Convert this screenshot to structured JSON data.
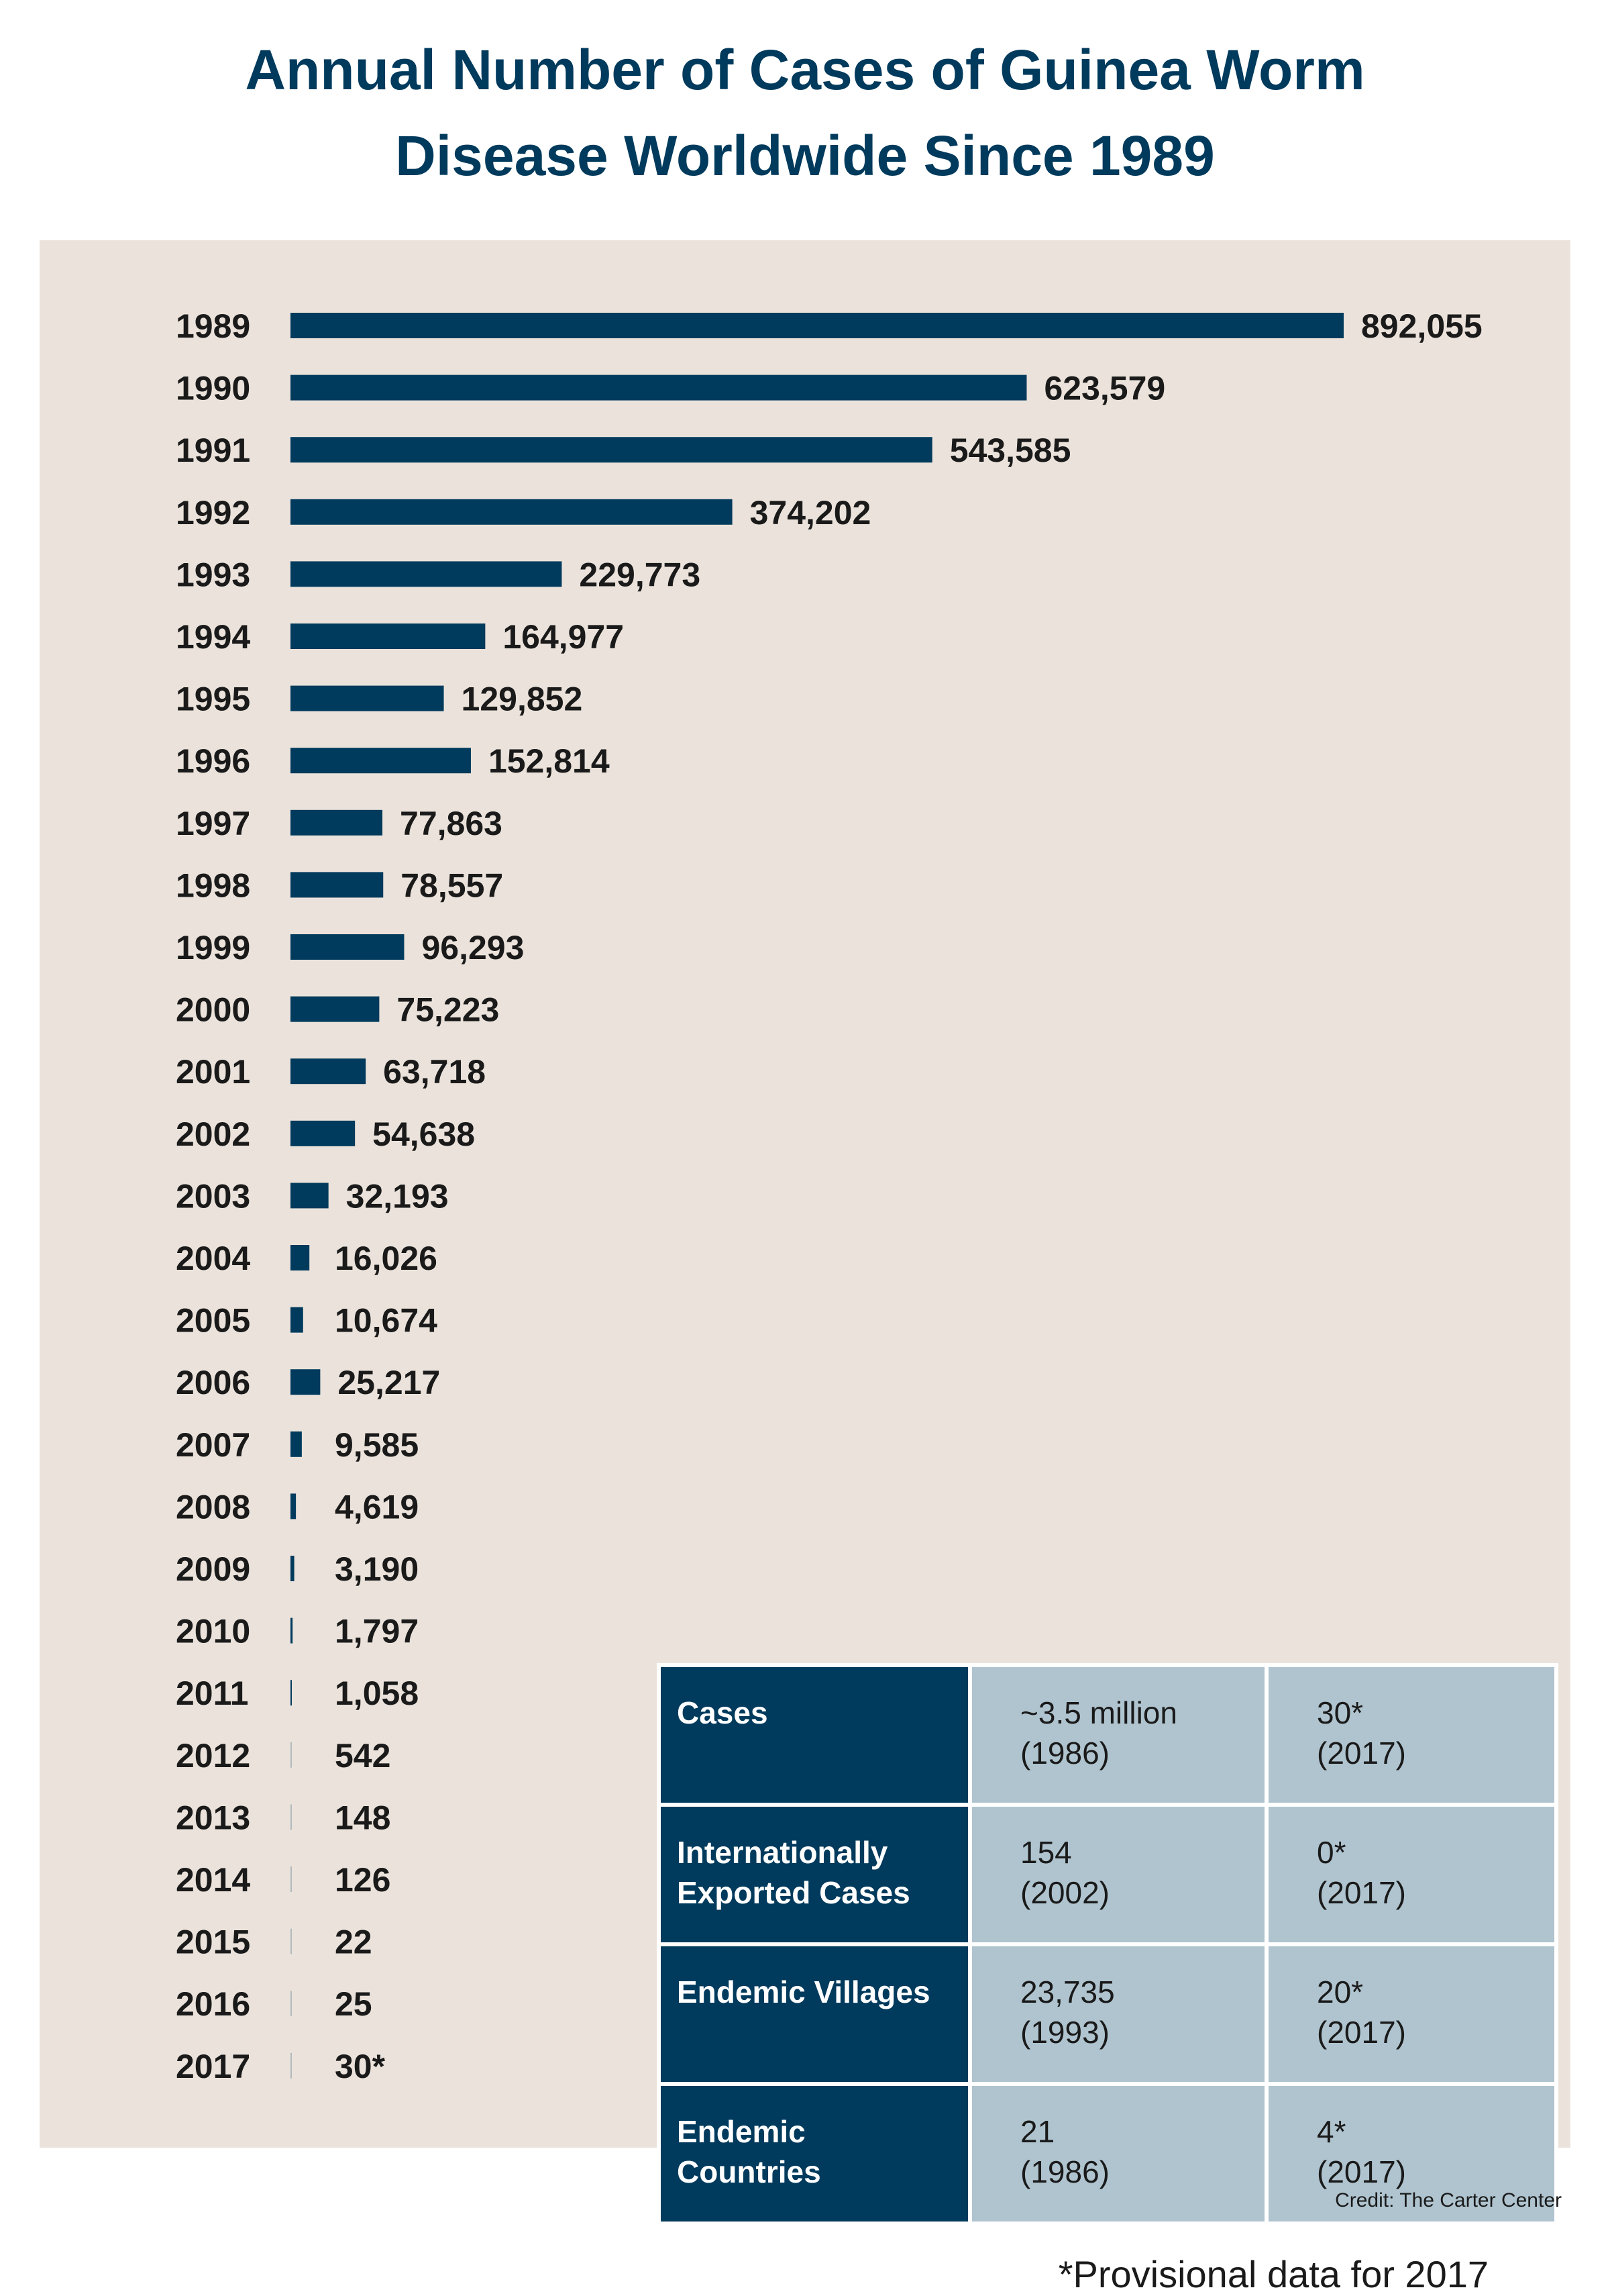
{
  "title": {
    "line1": "Annual Number of Cases of Guinea Worm",
    "line2": "Disease Worldwide Since 1989"
  },
  "colors": {
    "bar": "#003a5c",
    "panel_background": "#ebe3db",
    "table_header": "#003a5c",
    "table_cell": "#afc4cf",
    "title": "#003a5c"
  },
  "chart_data": {
    "type": "bar",
    "orientation": "horizontal",
    "title": "Annual Number of Cases of Guinea Worm Disease Worldwide Since 1989",
    "xlabel": "",
    "ylabel": "",
    "categories": [
      "1989",
      "1990",
      "1991",
      "1992",
      "1993",
      "1994",
      "1995",
      "1996",
      "1997",
      "1998",
      "1999",
      "2000",
      "2001",
      "2002",
      "2003",
      "2004",
      "2005",
      "2006",
      "2007",
      "2008",
      "2009",
      "2010",
      "2011",
      "2012",
      "2013",
      "2014",
      "2015",
      "2016",
      "2017"
    ],
    "values": [
      892055,
      623579,
      543585,
      374202,
      229773,
      164977,
      129852,
      152814,
      77863,
      78557,
      96293,
      75223,
      63718,
      54638,
      32193,
      16026,
      10674,
      25217,
      9585,
      4619,
      3190,
      1797,
      1058,
      542,
      148,
      126,
      22,
      25,
      30
    ],
    "value_labels": [
      "892,055",
      "623,579",
      "543,585",
      "374,202",
      "229,773",
      "164,977",
      "129,852",
      "152,814",
      "77,863",
      "78,557",
      "96,293",
      "75,223",
      "63,718",
      "54,638",
      "32,193",
      "16,026",
      "10,674",
      "25,217",
      "9,585",
      "4,619",
      "3,190",
      "1,797",
      "1,058",
      "542",
      "148",
      "126",
      "22",
      "25",
      "30*"
    ],
    "xlim": [
      0,
      892055
    ],
    "grid": false,
    "legend": "none"
  },
  "summary_table": {
    "rows": [
      {
        "label": [
          "Cases"
        ],
        "peak": [
          "~3.5 million",
          "(1986)"
        ],
        "current": [
          "30*",
          "(2017)"
        ]
      },
      {
        "label": [
          "Internationally",
          "Exported Cases"
        ],
        "peak": [
          "154",
          "(2002)"
        ],
        "current": [
          "0*",
          "(2017)"
        ]
      },
      {
        "label": [
          "Endemic Villages"
        ],
        "peak": [
          "23,735",
          "(1993)"
        ],
        "current": [
          "20*",
          "(2017)"
        ]
      },
      {
        "label": [
          "Endemic",
          "Countries"
        ],
        "peak": [
          "21",
          "(1986)"
        ],
        "current": [
          "4*",
          "(2017)"
        ]
      }
    ]
  },
  "footnote": "*Provisional data for 2017",
  "credit": "Credit: The Carter Center"
}
